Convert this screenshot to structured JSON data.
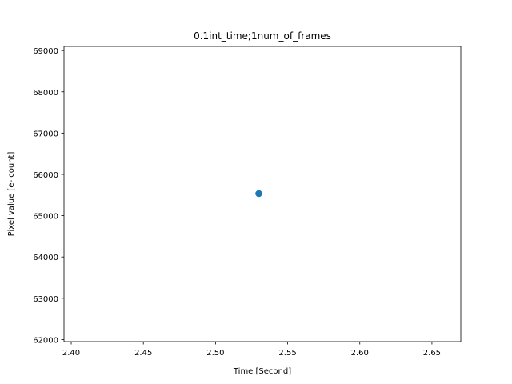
{
  "chart_data": {
    "type": "scatter",
    "title": "0.1int_time;1num_of_frames",
    "xlabel": "Time [Second]",
    "ylabel": "Pixel value [e- count]",
    "xlim": [
      2.395,
      2.67
    ],
    "ylim": [
      61950,
      69100
    ],
    "xticks": [
      2.4,
      2.45,
      2.5,
      2.55,
      2.6,
      2.65
    ],
    "xtick_labels": [
      "2.40",
      "2.45",
      "2.50",
      "2.55",
      "2.60",
      "2.65"
    ],
    "yticks": [
      62000,
      63000,
      64000,
      65000,
      66000,
      67000,
      68000,
      69000
    ],
    "ytick_labels": [
      "62000",
      "63000",
      "64000",
      "65000",
      "66000",
      "67000",
      "68000",
      "69000"
    ],
    "grid": false,
    "legend": "none",
    "series": [
      {
        "color": "#1f77b4",
        "x": [
          2.53
        ],
        "y": [
          65535
        ]
      }
    ]
  }
}
